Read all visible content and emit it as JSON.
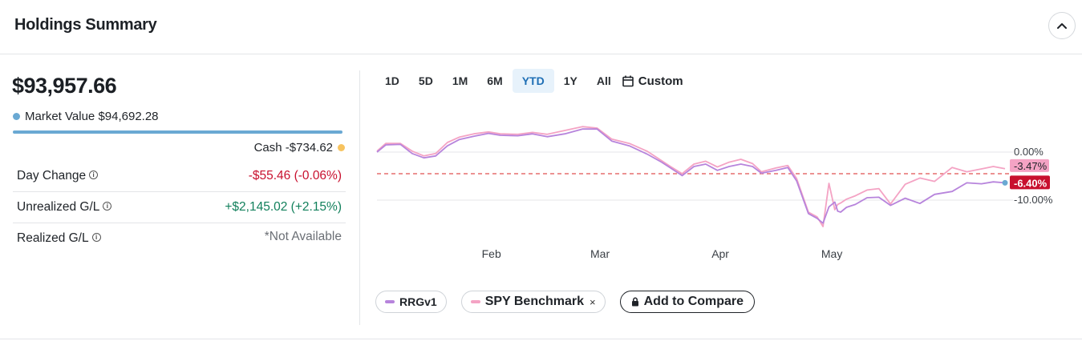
{
  "header": {
    "title": "Holdings Summary"
  },
  "summary": {
    "total": "$93,957.66",
    "market_value_label": "Market Value",
    "market_value": "$94,692.28",
    "cash_label": "Cash",
    "cash_value": "-$734.62",
    "metrics": [
      {
        "label": "Day Change",
        "value": "-$55.46 (-0.06%)",
        "tone": "neg",
        "info": true
      },
      {
        "label": "Unrealized G/L",
        "value": "+$2,145.02 (+2.15%)",
        "tone": "pos",
        "info": true
      },
      {
        "label": "Realized G/L",
        "value": "*Not Available",
        "tone": "na",
        "info": true
      }
    ]
  },
  "colors": {
    "market_value_dot": "#6aa9d3",
    "cash_dot": "#f7c35f",
    "portfolio_line": "#b784dc",
    "benchmark_line": "#f4a3c4",
    "negative": "#c8102e",
    "positive": "#12805c",
    "active_range_bg": "#e7f2fb",
    "reference_line": "#e05252"
  },
  "ranges": {
    "items": [
      "1D",
      "5D",
      "1M",
      "6M",
      "YTD",
      "1Y",
      "All"
    ],
    "active": "YTD",
    "custom_label": "Custom"
  },
  "legend": {
    "portfolio": "RRGv1",
    "benchmark": "SPY Benchmark",
    "remove_symbol": "×",
    "compare_label": "Add to Compare"
  },
  "chart_data": {
    "type": "line",
    "x_ticks": [
      "Feb",
      "Mar",
      "Apr",
      "May"
    ],
    "y_ticks": [
      "0.00%",
      "-10.00%"
    ],
    "ylim": [
      -15,
      5
    ],
    "reference_line": -4.5,
    "series": [
      {
        "name": "RRGv1",
        "end_label": "-6.40%",
        "x": [
          0,
          3,
          8,
          12,
          16,
          20,
          24,
          28,
          33,
          38,
          42,
          48,
          53,
          58,
          64,
          70,
          75,
          80,
          86,
          92,
          97,
          100,
          104,
          108,
          112,
          116,
          120,
          124,
          128,
          131,
          136,
          140,
          143,
          147,
          150,
          152,
          154,
          156,
          157,
          158,
          160,
          163,
          167,
          171,
          175,
          180,
          185,
          190,
          196,
          201,
          206,
          210,
          214
        ],
        "values": [
          0.0,
          1.5,
          1.6,
          -0.3,
          -1.2,
          -0.8,
          1.3,
          2.6,
          3.3,
          3.9,
          3.5,
          3.4,
          3.8,
          3.2,
          3.8,
          4.8,
          4.8,
          2.3,
          1.3,
          -0.4,
          -2.1,
          -3.3,
          -4.9,
          -3.0,
          -2.5,
          -3.8,
          -3.0,
          -2.5,
          -3.0,
          -4.4,
          -3.8,
          -3.2,
          -6.0,
          -12.8,
          -13.8,
          -14.8,
          -11.4,
          -10.4,
          -12.3,
          -12.5,
          -11.5,
          -10.9,
          -9.5,
          -9.4,
          -11.1,
          -9.6,
          -10.7,
          -8.8,
          -8.2,
          -6.4,
          -6.6,
          -6.2,
          -6.4
        ]
      },
      {
        "name": "SPY Benchmark",
        "end_label": "-3.47%",
        "x": [
          0,
          3,
          8,
          12,
          16,
          20,
          24,
          28,
          33,
          38,
          42,
          48,
          53,
          58,
          64,
          70,
          75,
          80,
          86,
          92,
          97,
          100,
          104,
          108,
          112,
          116,
          120,
          124,
          128,
          131,
          136,
          140,
          143,
          147,
          150,
          152,
          154,
          156,
          157,
          158,
          160,
          163,
          167,
          171,
          175,
          180,
          185,
          190,
          196,
          201,
          206,
          210,
          214
        ],
        "values": [
          0.2,
          1.8,
          1.8,
          0.2,
          -0.8,
          -0.3,
          2.0,
          3.1,
          3.8,
          4.2,
          3.8,
          3.7,
          4.1,
          3.7,
          4.5,
          5.3,
          5.0,
          2.7,
          1.8,
          0.2,
          -1.8,
          -3.0,
          -4.5,
          -2.5,
          -1.9,
          -3.1,
          -2.1,
          -1.5,
          -2.4,
          -4.1,
          -3.3,
          -2.8,
          -5.5,
          -12.5,
          -13.5,
          -15.5,
          -6.5,
          -12.0,
          -10.9,
          -10.6,
          -9.8,
          -9.1,
          -7.9,
          -7.6,
          -10.8,
          -6.7,
          -5.4,
          -6.1,
          -3.2,
          -4.1,
          -3.5,
          -3.0,
          -3.47
        ]
      }
    ]
  }
}
